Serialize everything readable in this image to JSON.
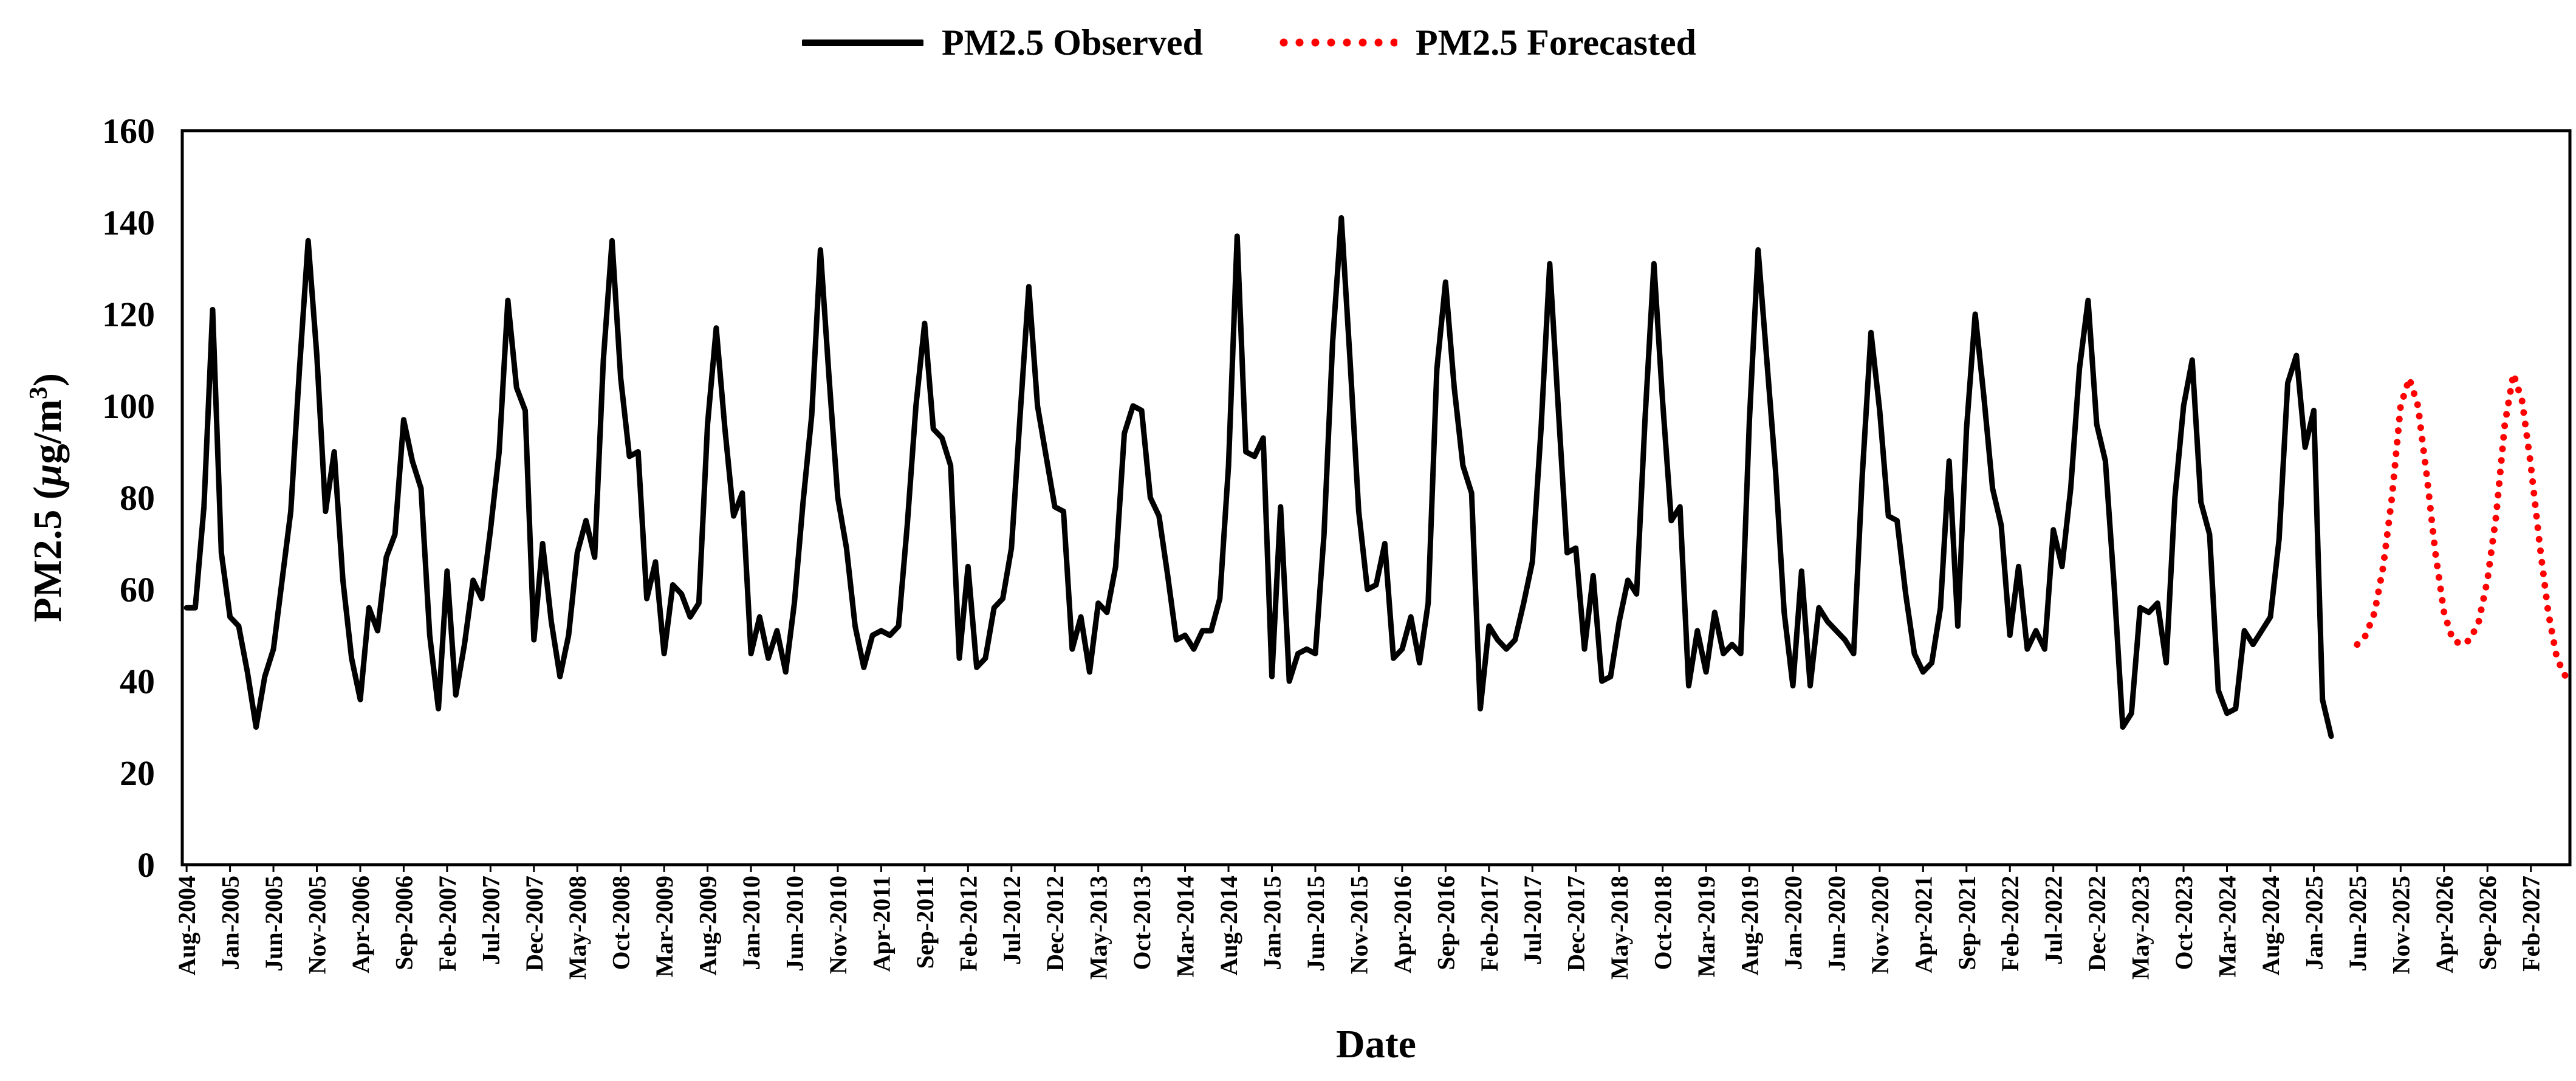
{
  "chart_data": {
    "type": "line",
    "title": "",
    "xlabel": "Date",
    "ylabel": "PM2.5",
    "ylabel_unit": "μg/m³",
    "ylabel_parts": {
      "prefix": "PM2.5 (",
      "mu": "μ",
      "g": "g/m",
      "sup": "3",
      "suffix": ")"
    },
    "ylim": [
      0,
      160
    ],
    "yticks": [
      0,
      20,
      40,
      60,
      80,
      100,
      120,
      140,
      160
    ],
    "legend": {
      "position": "top-center"
    },
    "xtick_labels": [
      "Aug-2004",
      "Jan-2005",
      "Jun-2005",
      "Nov-2005",
      "Apr-2006",
      "Sep-2006",
      "Feb-2007",
      "Jul-2007",
      "Dec-2007",
      "May-2008",
      "Oct-2008",
      "Mar-2009",
      "Aug-2009",
      "Jan-2010",
      "Jun-2010",
      "Nov-2010",
      "Apr-2011",
      "Sep-2011",
      "Feb-2012",
      "Jul-2012",
      "Dec-2012",
      "May-2013",
      "Oct-2013",
      "Mar-2014",
      "Aug-2014",
      "Jan-2015",
      "Jun-2015",
      "Nov-2015",
      "Apr-2016",
      "Sep-2016",
      "Feb-2017",
      "Jul-2017",
      "Dec-2017",
      "May-2018",
      "Oct-2018",
      "Mar-2019",
      "Aug-2019",
      "Jan-2020",
      "Jun-2020",
      "Nov-2020",
      "Apr-2021",
      "Sep-2021",
      "Feb-2022",
      "Jul-2022",
      "Dec-2022",
      "May-2023",
      "Oct-2023",
      "Mar-2024",
      "Aug-2024",
      "Jan-2025",
      "Jun-2025",
      "Nov-2025",
      "Apr-2026",
      "Sep-2026",
      "Feb-2027"
    ],
    "x_start": "Aug-2004",
    "x_step": "1 month",
    "series": [
      {
        "name": "PM2.5 Observed",
        "color": "#000000",
        "style": "solid",
        "start_index": 0,
        "values": [
          56,
          56,
          78,
          121,
          68,
          54,
          52,
          42,
          30,
          41,
          47,
          62,
          77,
          108,
          136,
          111,
          77,
          90,
          62,
          45,
          36,
          56,
          51,
          67,
          72,
          97,
          88,
          82,
          50,
          34,
          64,
          37,
          48,
          62,
          58,
          73,
          90,
          123,
          104,
          99,
          49,
          70,
          53,
          41,
          50,
          68,
          75,
          67,
          110,
          136,
          106,
          89,
          90,
          58,
          66,
          46,
          61,
          59,
          54,
          57,
          96,
          117,
          95,
          76,
          81,
          46,
          54,
          45,
          51,
          42,
          57,
          79,
          98,
          134,
          106,
          80,
          69,
          52,
          43,
          50,
          51,
          50,
          52,
          74,
          100,
          118,
          95,
          93,
          87,
          45,
          65,
          43,
          45,
          56,
          58,
          69,
          98,
          126,
          100,
          89,
          78,
          77,
          47,
          54,
          42,
          57,
          55,
          65,
          94,
          100,
          99,
          80,
          76,
          63,
          49,
          50,
          47,
          51,
          51,
          58,
          87,
          137,
          90,
          89,
          93,
          41,
          78,
          40,
          46,
          47,
          46,
          72,
          114,
          141,
          110,
          77,
          60,
          61,
          70,
          45,
          47,
          54,
          44,
          57,
          108,
          127,
          104,
          87,
          81,
          34,
          52,
          49,
          47,
          49,
          57,
          66,
          95,
          131,
          99,
          68,
          69,
          47,
          63,
          40,
          41,
          53,
          62,
          59,
          98,
          131,
          101,
          75,
          78,
          39,
          51,
          42,
          55,
          46,
          48,
          46,
          97,
          134,
          110,
          86,
          55,
          39,
          64,
          39,
          56,
          53,
          51,
          49,
          46,
          85,
          116,
          99,
          76,
          75,
          59,
          46,
          42,
          44,
          56,
          88,
          52,
          95,
          120,
          102,
          82,
          74,
          50,
          65,
          47,
          51,
          47,
          73,
          65,
          82,
          108,
          123,
          96,
          88,
          61,
          30,
          33,
          56,
          55,
          57,
          44,
          80,
          100,
          110,
          79,
          72,
          38,
          33,
          34,
          51,
          48,
          51,
          54,
          71,
          105,
          111,
          91,
          99,
          36,
          28
        ]
      },
      {
        "name": "PM2.5 Forecasted",
        "color": "#ff0000",
        "style": "dotted",
        "start_index": 250,
        "values": [
          48,
          50,
          55,
          65,
          80,
          100,
          106,
          100,
          85,
          68,
          55,
          49,
          48,
          49,
          53,
          62,
          76,
          96,
          107,
          101,
          87,
          70,
          55,
          45,
          41
        ]
      }
    ]
  }
}
